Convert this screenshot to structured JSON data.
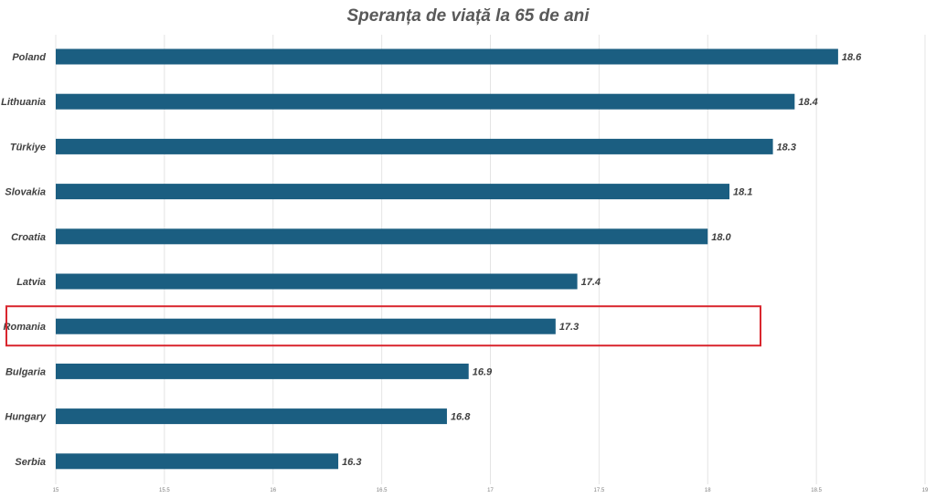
{
  "chart_data": {
    "type": "bar",
    "orientation": "horizontal",
    "title": "Speranța de viață la 65 de ani",
    "categories": [
      "Poland",
      "Lithuania",
      "Türkiye",
      "Slovakia",
      "Croatia",
      "Latvia",
      "Romania",
      "Bulgaria",
      "Hungary",
      "Serbia"
    ],
    "values": [
      18.6,
      18.4,
      18.3,
      18.1,
      18.0,
      17.4,
      17.3,
      16.9,
      16.8,
      16.3
    ],
    "value_labels": [
      "18.6",
      "18.4",
      "18.3",
      "18.1",
      "18.0",
      "17.4",
      "17.3",
      "16.9",
      "16.8",
      "16.3"
    ],
    "xlim": [
      15,
      19
    ],
    "xticks": [
      15,
      15.5,
      16,
      16.5,
      17,
      17.5,
      18,
      18.5,
      19
    ],
    "xtick_labels": [
      "15",
      "15.5",
      "16",
      "16.5",
      "17",
      "17.5",
      "18",
      "18.5",
      "19"
    ],
    "xlabel": "",
    "ylabel": "",
    "grid": true,
    "legend": "none",
    "highlighted_category": "Romania",
    "bar_color": "#1b5e81",
    "highlight_color": "#d9262e"
  }
}
